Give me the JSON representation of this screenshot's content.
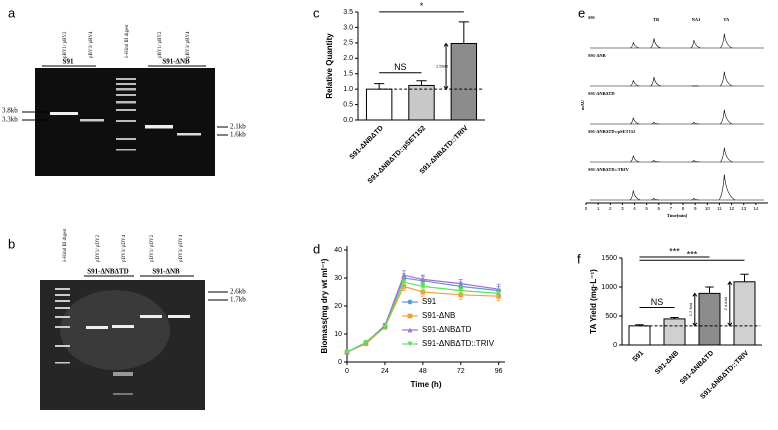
{
  "panel_a": {
    "letter": "a",
    "lanes": [
      "pBY1/ pBY2",
      "pBY3/ pBY4",
      "λ-Hind III digest",
      "pBY1/ pBY2",
      "pBY3/ pBY4"
    ],
    "groups": [
      "S91",
      "S91-ΔNB"
    ],
    "sizes": [
      "3.8kb",
      "3.3kb",
      "2.1kb",
      "1.6kb"
    ]
  },
  "panel_b": {
    "letter": "b",
    "lanes": [
      "λ-Hind III digest",
      "pDY1/ pDY2",
      "pDY3/ pDY4",
      "pDY1/ pDY2",
      "pDY3/ pDY4"
    ],
    "groups": [
      "S91-ΔNBΔTD",
      "S91-ΔNB"
    ],
    "sizes": [
      "2.6kb",
      "1.7kb"
    ]
  },
  "chart_data": [
    {
      "panel": "c",
      "type": "bar",
      "categories": [
        "S91-ΔNBΔTD",
        "S91-ΔNBΔTD::pSET152",
        "S91-ΔNBΔTD::TRIV"
      ],
      "values": [
        1.0,
        1.12,
        2.48
      ],
      "errors": [
        0.18,
        0.15,
        0.7
      ],
      "colors": [
        "#ffffff",
        "#c8c8c8",
        "#8c8c8c"
      ],
      "ylabel": "Relative Quantity",
      "ylim": [
        0,
        3.5
      ],
      "yticks": [
        {
          "value": 0,
          "label": "0.0"
        },
        0.5,
        {
          "value": 1,
          "label": "1.0"
        },
        1.5,
        {
          "value": 2,
          "label": "2.0"
        },
        2.5,
        {
          "value": 3,
          "label": "3.0"
        },
        3.5
      ],
      "annotations": [
        "NS",
        "*",
        "1.5fold"
      ]
    },
    {
      "panel": "d",
      "type": "line",
      "x": [
        0,
        12,
        24,
        36,
        48,
        72,
        96
      ],
      "xlim": [
        0,
        100
      ],
      "xticks": [
        0,
        24,
        48,
        72,
        96
      ],
      "ylim": [
        0,
        40
      ],
      "yticks": [
        0,
        10,
        20,
        30,
        40
      ],
      "xlabel": "Time (h)",
      "ylabel": "Biomass(mg dry wt ml⁻¹)",
      "series": [
        {
          "name": "S91",
          "color": "#5b9bd5",
          "marker": "circle",
          "values": [
            3.5,
            7,
            13,
            30,
            29,
            27,
            25.5
          ],
          "errors": [
            0.3,
            0.6,
            0.8,
            1.5,
            1.4,
            1.5,
            1.5
          ]
        },
        {
          "name": "S91-ΔNB",
          "color": "#f5a040",
          "marker": "square",
          "values": [
            3.5,
            6.5,
            12.5,
            27,
            25,
            24,
            23.5
          ],
          "errors": [
            0.3,
            0.6,
            0.8,
            1.5,
            1.5,
            1.6,
            1.6
          ]
        },
        {
          "name": "S91-ΔNBΔTD",
          "color": "#a56cd6",
          "marker": "triangle",
          "values": [
            3.5,
            7,
            13,
            31,
            29.5,
            28,
            26
          ],
          "errors": [
            0.3,
            0.6,
            0.8,
            1.6,
            1.5,
            1.5,
            1.8
          ]
        },
        {
          "name": "S91-ΔNBΔTD::TRIV",
          "color": "#5fe05a",
          "marker": "triangle-down",
          "values": [
            3.5,
            7,
            12.5,
            28.5,
            27,
            25.5,
            24.5
          ],
          "errors": [
            0.3,
            0.6,
            0.8,
            1.5,
            1.5,
            1.5,
            1.6
          ]
        }
      ]
    },
    {
      "panel": "e",
      "type": "chromatogram",
      "xlabel": "Time[min]",
      "ylabel": "mAU",
      "xlim": [
        0,
        15
      ],
      "xticks": [
        0,
        1,
        2,
        3,
        4,
        5,
        6,
        7,
        8,
        9,
        10,
        11,
        12,
        13,
        14
      ],
      "ylim": [
        0,
        100
      ],
      "peak_x": [
        3.9,
        5.6,
        8.9,
        11.4
      ],
      "peak_labels": [
        null,
        "TB",
        "NA1",
        "TA"
      ],
      "series": [
        {
          "name": "S91",
          "values": [
            18,
            30,
            25,
            45
          ]
        },
        {
          "name": "S91-ΔNB",
          "values": [
            18,
            28,
            0,
            45
          ]
        },
        {
          "name": "S91-ΔNBΔTD",
          "values": [
            20,
            5,
            5,
            45
          ]
        },
        {
          "name": "S91-ΔNBΔTD::pSET152",
          "values": [
            20,
            5,
            5,
            45
          ]
        },
        {
          "name": "S91-ΔNBΔTD::TRIV",
          "values": [
            30,
            5,
            5,
            80
          ]
        }
      ]
    },
    {
      "panel": "f",
      "type": "bar",
      "categories": [
        "S91",
        "S91-ΔNB",
        "S91-ΔNBΔTD",
        "S91-ΔNBΔTD::TRIV"
      ],
      "values": [
        330,
        450,
        890,
        1090
      ],
      "errors": [
        20,
        25,
        110,
        130
      ],
      "colors": [
        "#ffffff",
        "#d0d0d0",
        "#8c8c8c",
        "#d0d0d0"
      ],
      "ylabel": "TA Yield (mg·L⁻¹)",
      "ylim": [
        0,
        1500
      ],
      "yticks": [
        0,
        500,
        1000,
        1500
      ],
      "annotations": [
        "NS",
        "***",
        "***",
        "1.7-fold",
        "2.4-fold"
      ]
    }
  ]
}
